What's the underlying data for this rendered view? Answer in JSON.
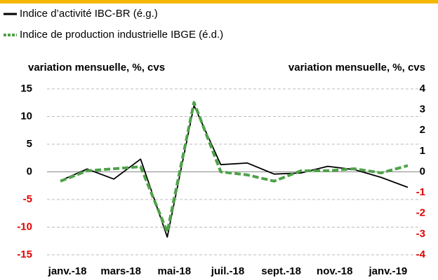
{
  "chart_data": {
    "type": "line",
    "ylabel": "variation mensuelle, %, cvs",
    "y2label": "variation mensuelle, %, cvs",
    "categories": [
      "janv.-18",
      null,
      "mars-18",
      null,
      "mai-18",
      null,
      "juil.-18",
      null,
      "sept.-18",
      null,
      "nov.-18",
      null,
      "janv.-19",
      null
    ],
    "series": [
      {
        "name": "Indice d’activité IBC-BR (é.g.)",
        "color": "#000000",
        "values": [
          -1.6,
          0.5,
          -1.3,
          2.3,
          -11.8,
          12.0,
          1.3,
          1.6,
          -0.4,
          -0.2,
          1.0,
          0.4,
          -1.0,
          -2.8
        ]
      },
      {
        "name": "Indice de production industrielle IBGE (é.d.)",
        "color": "#4ea248",
        "axis": "y2",
        "dashed": true,
        "values": [
          -0.45,
          0.05,
          0.15,
          0.25,
          -2.9,
          3.35,
          0.0,
          -0.15,
          -0.45,
          0.05,
          0.05,
          0.15,
          -0.05,
          0.3
        ]
      }
    ],
    "ylim": [
      -15,
      15
    ],
    "yticks": [
      -15,
      -10,
      -5,
      0,
      5,
      10,
      15
    ],
    "y2lim": [
      -4,
      4
    ],
    "y2ticks": [
      -4,
      -3,
      -2,
      -1,
      0,
      1,
      2,
      3,
      4
    ],
    "grid": true,
    "negative_tick_color": "#e00000"
  }
}
